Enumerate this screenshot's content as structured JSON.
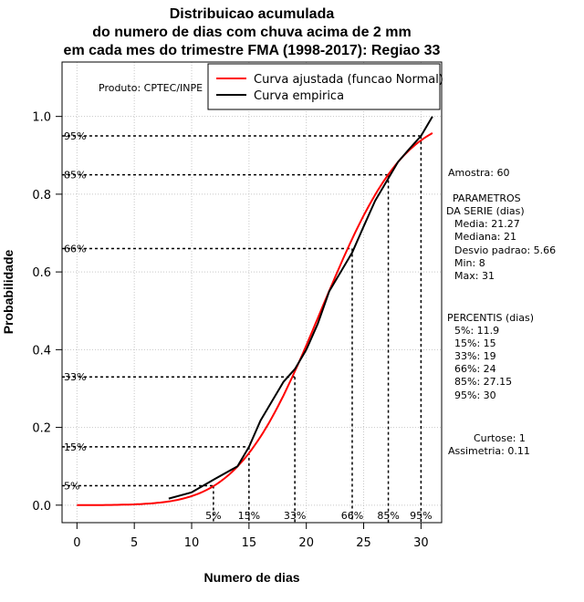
{
  "chart_data": {
    "type": "line",
    "title_lines": [
      "Distribuicao acumulada",
      "do numero de dias com chuva acima de 2 mm",
      "em cada mes do trimestre FMA (1998-2017): Regiao 33"
    ],
    "xlabel": "Numero de dias",
    "ylabel": "Probabilidade",
    "xlim": [
      -1.3,
      31.8
    ],
    "ylim": [
      -0.045,
      1.14
    ],
    "x_ticks": [
      0,
      5,
      10,
      15,
      20,
      25,
      30
    ],
    "y_ticks": [
      0.0,
      0.2,
      0.4,
      0.6,
      0.8,
      1.0
    ],
    "y_tick_labels": [
      "0.0",
      "0.2",
      "0.4",
      "0.6",
      "0.8",
      "1.0"
    ],
    "grid": true,
    "product_label": "Produto: CPTEC/INPE",
    "legend": {
      "position": "top-right",
      "entries": [
        {
          "label": "Curva ajustada (funcao Normal)",
          "color": "#ff0000"
        },
        {
          "label": "Curva empirica",
          "color": "#000000"
        }
      ]
    },
    "series": [
      {
        "name": "Curva ajustada (funcao Normal)",
        "color": "#ff0000",
        "normal_fit": {
          "mean": 21.27,
          "sd": 5.66,
          "x_from": 0,
          "x_to": 31,
          "step": 0.25
        }
      },
      {
        "name": "Curva empirica",
        "color": "#000000",
        "x": [
          8,
          10,
          12,
          14,
          15,
          16,
          17,
          18,
          19,
          20,
          21,
          22,
          23,
          24,
          25,
          26,
          27,
          28,
          29,
          30,
          31
        ],
        "y": [
          0.017,
          0.033,
          0.067,
          0.1,
          0.15,
          0.217,
          0.267,
          0.317,
          0.35,
          0.4,
          0.467,
          0.55,
          0.6,
          0.65,
          0.717,
          0.783,
          0.833,
          0.883,
          0.917,
          0.95,
          1.0
        ]
      }
    ],
    "percentile_markers": [
      {
        "label": "5%",
        "p": 0.05,
        "x": 11.9
      },
      {
        "label": "15%",
        "p": 0.15,
        "x": 15
      },
      {
        "label": "33%",
        "p": 0.33,
        "x": 19
      },
      {
        "label": "66%",
        "p": 0.66,
        "x": 24
      },
      {
        "label": "85%",
        "p": 0.85,
        "x": 27.15
      },
      {
        "label": "95%",
        "p": 0.95,
        "x": 30
      }
    ]
  },
  "side_panel": {
    "amostra": "Amostra: 60",
    "params_header_1": "PARAMETROS",
    "params_header_2": "DA SERIE (dias)",
    "params": [
      "Media: 21.27",
      "Mediana: 21",
      "Desvio padrao: 5.66",
      "Min: 8",
      "Max: 31"
    ],
    "percentis_header": "PERCENTIS (dias)",
    "percentis": [
      "5%: 11.9",
      "15%: 15",
      "33%: 19",
      "66%: 24",
      "85%: 27.15",
      "95%: 30"
    ],
    "curtose": "Curtose: 1",
    "assimetria": "Assimetria: 0.11"
  }
}
